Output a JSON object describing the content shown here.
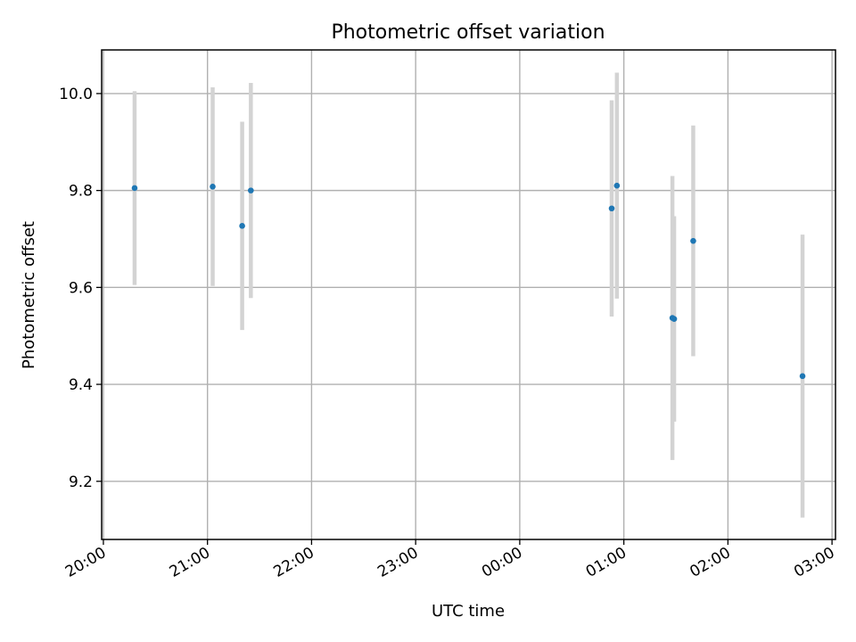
{
  "chart_data": {
    "type": "scatter",
    "title": "Photometric offset variation",
    "xlabel": "UTC time",
    "ylabel": "Photometric offset",
    "x_axis": {
      "kind": "time",
      "range": [
        "19:59",
        "03:02"
      ],
      "ticks": [
        "20:00",
        "21:00",
        "22:00",
        "23:00",
        "00:00",
        "01:00",
        "02:00",
        "03:00"
      ]
    },
    "y_axis": {
      "range": [
        9.08,
        10.09
      ],
      "ticks": [
        "9.2",
        "9.4",
        "9.6",
        "9.8",
        "10.0"
      ]
    },
    "grid": true,
    "points": [
      {
        "time": "20:18",
        "y": 9.805,
        "err": 0.2
      },
      {
        "time": "21:03",
        "y": 9.808,
        "err": 0.205
      },
      {
        "time": "21:20",
        "y": 9.727,
        "err": 0.215
      },
      {
        "time": "21:25",
        "y": 9.8,
        "err": 0.222
      },
      {
        "time": "00:53",
        "y": 9.763,
        "err": 0.223
      },
      {
        "time": "00:56",
        "y": 9.81,
        "err": 0.233
      },
      {
        "time": "01:28",
        "y": 9.537,
        "err": 0.293
      },
      {
        "time": "01:29",
        "y": 9.535,
        "err": 0.212
      },
      {
        "time": "01:40",
        "y": 9.696,
        "err": 0.238
      },
      {
        "time": "02:43",
        "y": 9.417,
        "err": 0.292
      }
    ],
    "colors": {
      "points": "#1f77b4",
      "errorbars": "#d3d3d3"
    }
  }
}
